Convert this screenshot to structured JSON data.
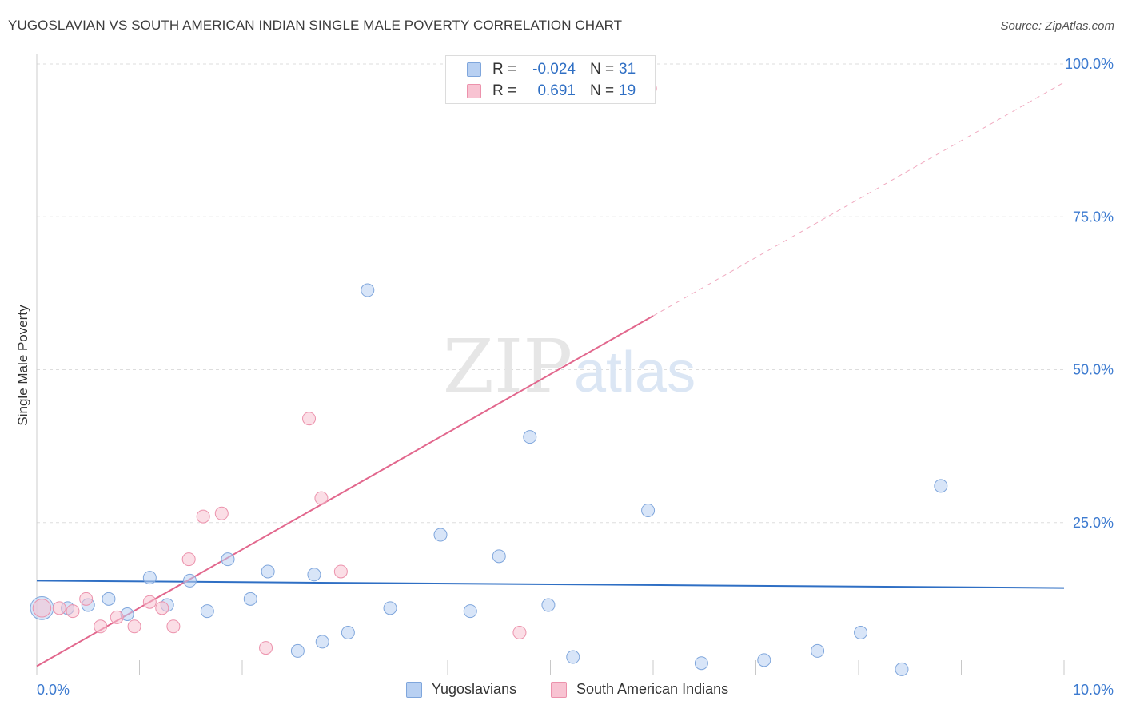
{
  "title": "YUGOSLAVIAN VS SOUTH AMERICAN INDIAN SINGLE MALE POVERTY CORRELATION CHART",
  "source": "Source: ZipAtlas.com",
  "watermark": {
    "zip": "ZIP",
    "atlas": "atlas"
  },
  "stats": [
    {
      "r_label": "R =",
      "r_value": "-0.024",
      "n_label": "N =",
      "n_value": "31"
    },
    {
      "r_label": "R =",
      "r_value": "0.691",
      "n_label": "N =",
      "n_value": "19"
    }
  ],
  "legend": [
    {
      "label": "Yugoslavians"
    },
    {
      "label": "South American Indians"
    }
  ],
  "colors": {
    "blue_fill": "#b8d0f2",
    "blue_stroke": "#7fa6dc",
    "blue_line": "#2f6fc4",
    "pink_fill": "#f8c3d2",
    "pink_stroke": "#ec92ac",
    "pink_line": "#e2678d",
    "grid": "#dddddd",
    "axis_text": "#3d7bd0"
  },
  "chart_data": {
    "type": "scatter",
    "title": "YUGOSLAVIAN VS SOUTH AMERICAN INDIAN SINGLE MALE POVERTY CORRELATION CHART",
    "xlabel": "",
    "ylabel": "Single Male Poverty",
    "xlim": [
      0,
      10
    ],
    "ylim": [
      0,
      100
    ],
    "x_tick_labels": [
      "0.0%",
      "10.0%"
    ],
    "y_tick_labels": [
      "25.0%",
      "50.0%",
      "75.0%",
      "100.0%"
    ],
    "y_ticks": [
      25,
      50,
      75,
      100
    ],
    "series": [
      {
        "name": "Yugoslavians",
        "color": "blue",
        "points": [
          {
            "x": 0.05,
            "y": 11.0,
            "s": 1.8
          },
          {
            "x": 0.3,
            "y": 11.0
          },
          {
            "x": 0.5,
            "y": 11.5
          },
          {
            "x": 0.7,
            "y": 12.5
          },
          {
            "x": 0.88,
            "y": 10.0
          },
          {
            "x": 1.1,
            "y": 16.0
          },
          {
            "x": 1.27,
            "y": 11.5
          },
          {
            "x": 1.49,
            "y": 15.5
          },
          {
            "x": 1.66,
            "y": 10.5
          },
          {
            "x": 1.86,
            "y": 19.0
          },
          {
            "x": 2.08,
            "y": 12.5
          },
          {
            "x": 2.25,
            "y": 17.0
          },
          {
            "x": 2.54,
            "y": 4.0
          },
          {
            "x": 2.7,
            "y": 16.5
          },
          {
            "x": 2.78,
            "y": 5.5
          },
          {
            "x": 3.03,
            "y": 7.0
          },
          {
            "x": 3.22,
            "y": 63.0
          },
          {
            "x": 3.44,
            "y": 11.0
          },
          {
            "x": 3.93,
            "y": 23.0
          },
          {
            "x": 4.22,
            "y": 10.5
          },
          {
            "x": 4.5,
            "y": 19.5
          },
          {
            "x": 4.8,
            "y": 39.0
          },
          {
            "x": 4.98,
            "y": 11.5
          },
          {
            "x": 5.22,
            "y": 3.0
          },
          {
            "x": 5.95,
            "y": 27.0
          },
          {
            "x": 6.47,
            "y": 2.0
          },
          {
            "x": 7.08,
            "y": 2.5
          },
          {
            "x": 7.6,
            "y": 4.0
          },
          {
            "x": 8.02,
            "y": 7.0
          },
          {
            "x": 8.42,
            "y": 1.0
          },
          {
            "x": 8.8,
            "y": 31.0
          }
        ],
        "trend": {
          "x": [
            0,
            10
          ],
          "y": [
            15.5,
            14.3
          ]
        }
      },
      {
        "name": "South American Indians",
        "color": "pink",
        "points": [
          {
            "x": 0.05,
            "y": 11.0,
            "s": 1.4
          },
          {
            "x": 0.22,
            "y": 11.0
          },
          {
            "x": 0.35,
            "y": 10.5
          },
          {
            "x": 0.48,
            "y": 12.5
          },
          {
            "x": 0.62,
            "y": 8.0
          },
          {
            "x": 0.78,
            "y": 9.5
          },
          {
            "x": 0.95,
            "y": 8.0
          },
          {
            "x": 1.1,
            "y": 12.0
          },
          {
            "x": 1.22,
            "y": 11.0
          },
          {
            "x": 1.33,
            "y": 8.0
          },
          {
            "x": 1.48,
            "y": 19.0
          },
          {
            "x": 1.62,
            "y": 26.0
          },
          {
            "x": 1.8,
            "y": 26.5
          },
          {
            "x": 2.23,
            "y": 4.5
          },
          {
            "x": 2.65,
            "y": 42.0
          },
          {
            "x": 2.77,
            "y": 29.0
          },
          {
            "x": 2.96,
            "y": 17.0
          },
          {
            "x": 4.7,
            "y": 7.0
          },
          {
            "x": 5.97,
            "y": 96.0
          }
        ],
        "trend": {
          "x": [
            0,
            6.0
          ],
          "y": [
            1.5,
            58.8
          ]
        },
        "trend_dashed": {
          "x": [
            6.0,
            10
          ],
          "y": [
            58.8,
            97.0
          ]
        }
      }
    ]
  }
}
